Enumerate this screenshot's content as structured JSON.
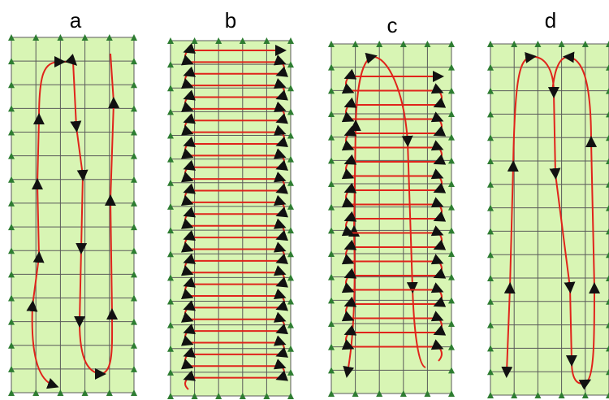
{
  "figure": {
    "panels": [
      {
        "label": "a"
      },
      {
        "label": "b"
      },
      {
        "label": "c"
      },
      {
        "label": "d"
      }
    ]
  },
  "colors": {
    "field": "#d8f5b4",
    "grid": "#5a5a5a",
    "marker": "#2e7d32",
    "path": "#e0241b",
    "arrow": "#111111",
    "label": "#000000"
  },
  "icons": {
    "marker": "green-triangle-marker-icon",
    "arrow": "black-arrowhead-icon"
  }
}
